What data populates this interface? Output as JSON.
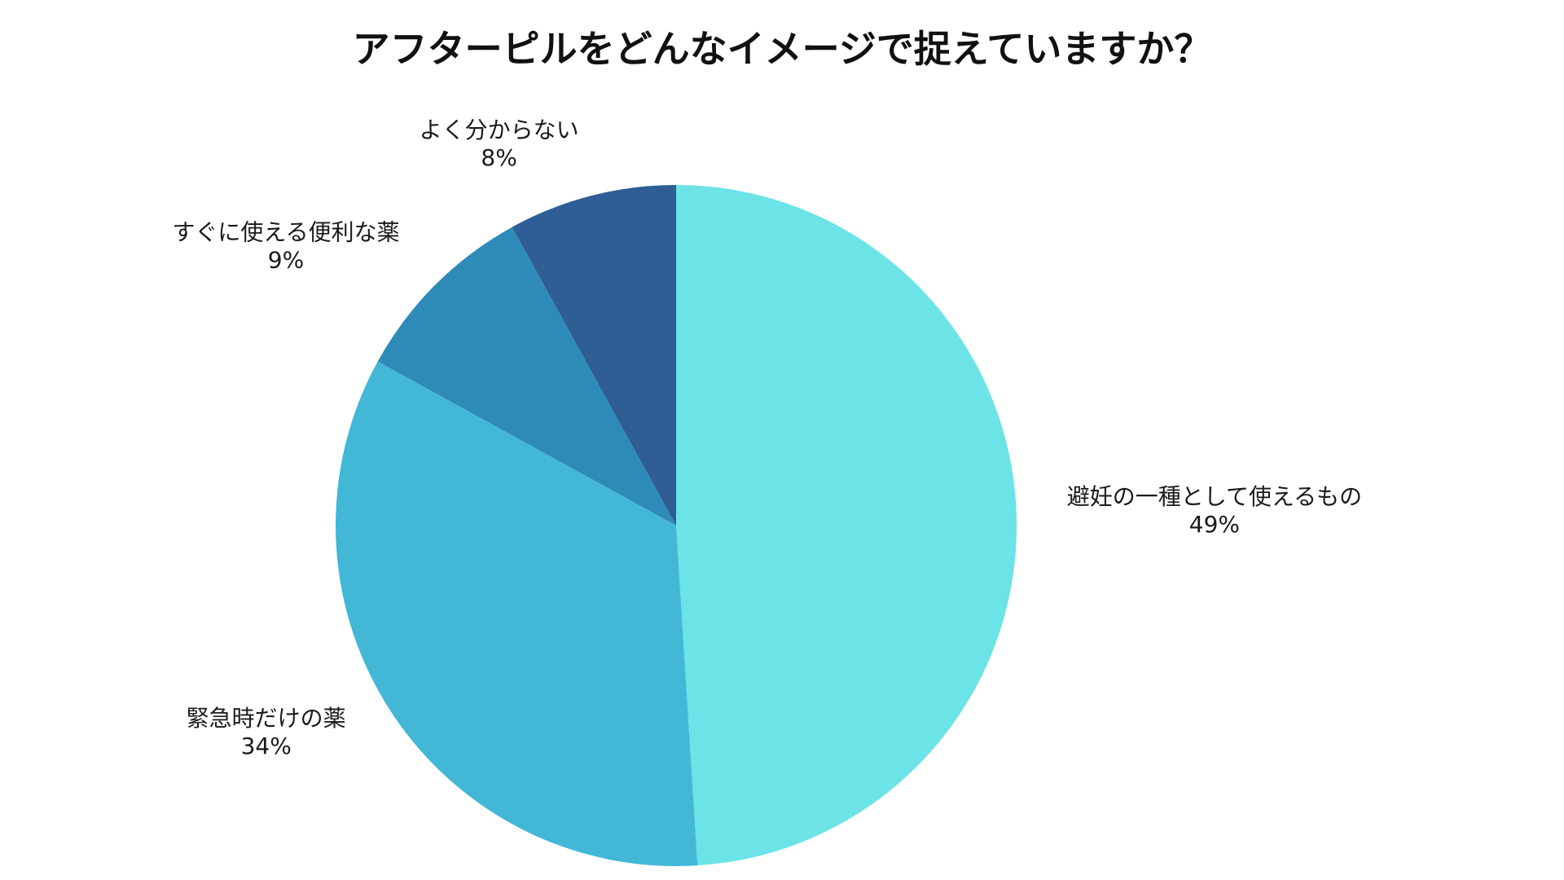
{
  "chart_data": {
    "type": "pie",
    "title": "アフターピルをどんなイメージで捉えていますか？",
    "start_angle_deg": 0,
    "direction": "clockwise",
    "slices": [
      {
        "label": "避妊の一種として使えるもの",
        "value": 49,
        "value_label": "49%",
        "color": "#6BE3E7"
      },
      {
        "label": "緊急時だけの薬",
        "value": 34,
        "value_label": "34%",
        "color": "#43B7D6"
      },
      {
        "label": "すぐに使える便利な薬",
        "value": 9,
        "value_label": "9%",
        "color": "#2E8BB8"
      },
      {
        "label": "よく分からない",
        "value": 8,
        "value_label": "8%",
        "color": "#2E5E94"
      }
    ]
  }
}
